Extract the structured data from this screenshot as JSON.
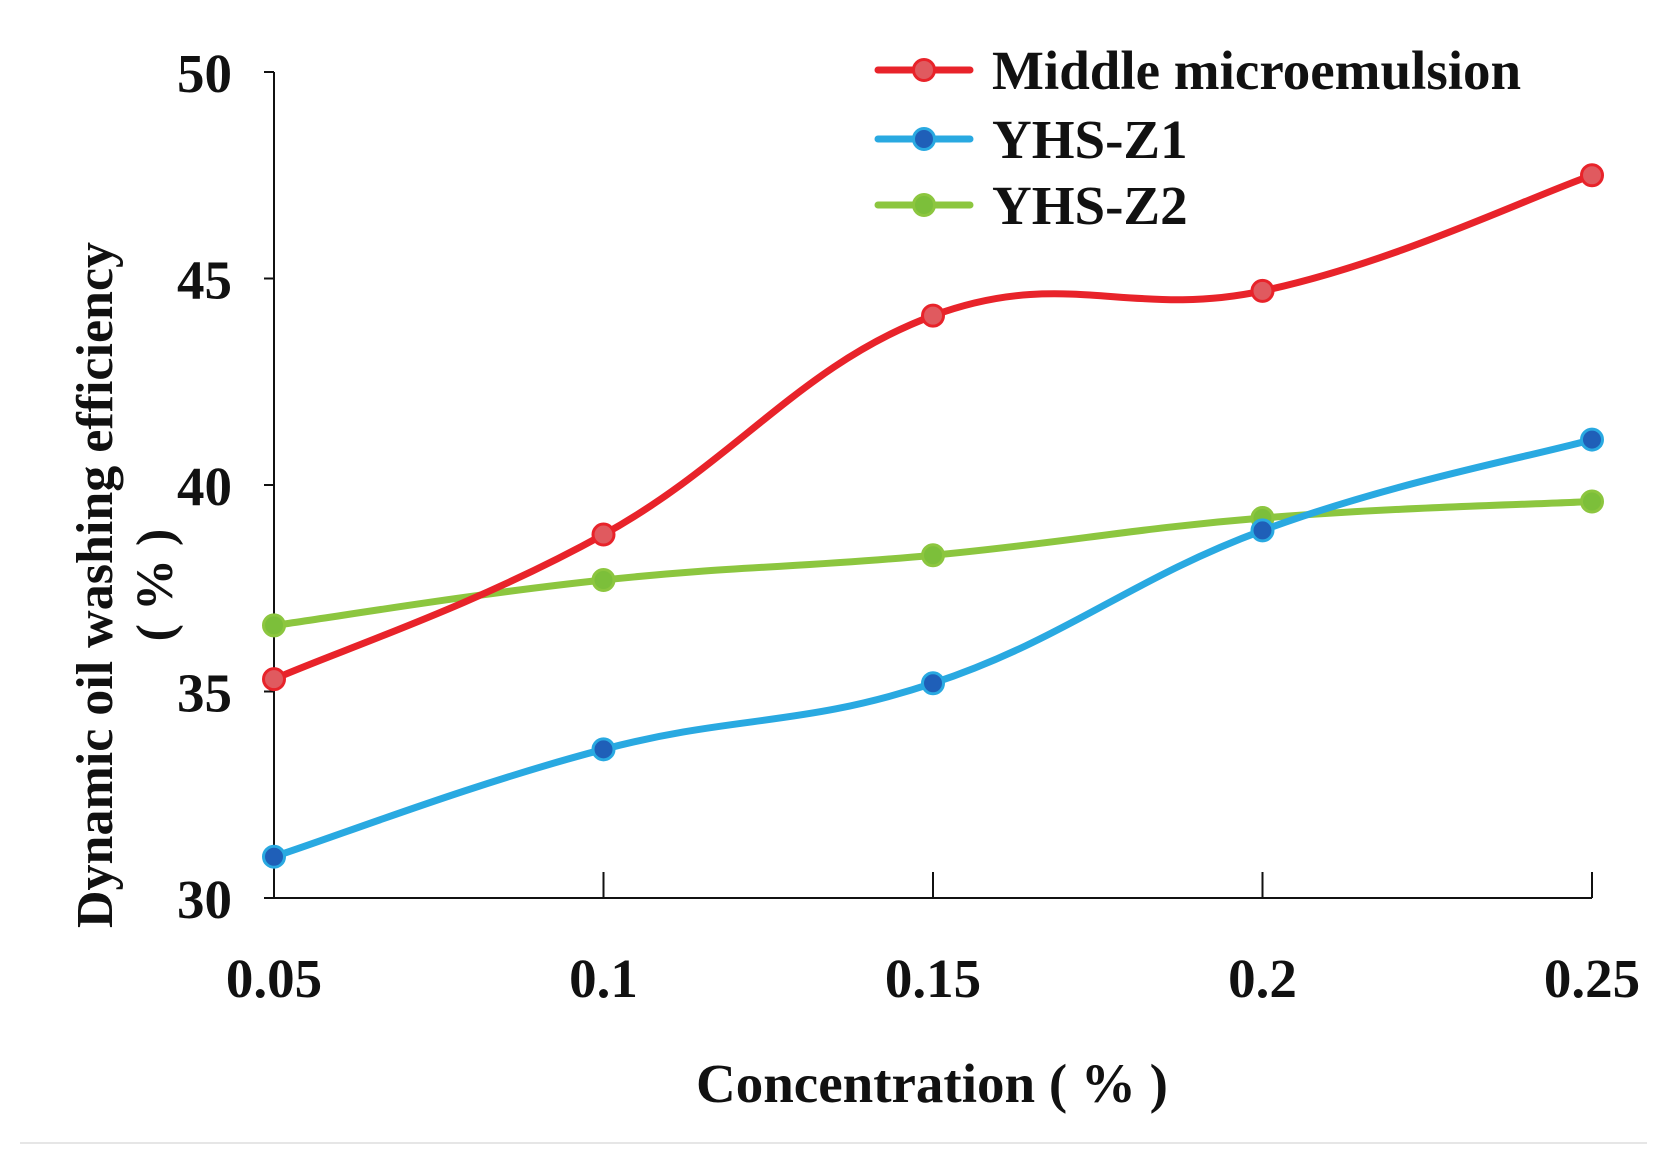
{
  "chart_data": {
    "type": "line",
    "title": "",
    "xlabel": "Concentration ( % )",
    "ylabel": "Dynamic oil washing efficiency",
    "ylabel_unit": "( % )",
    "categories": [
      "0.05",
      "0.1",
      "0.15",
      "0.2",
      "0.25"
    ],
    "ylim": [
      30,
      50
    ],
    "yticks": [
      "30",
      "35",
      "40",
      "45",
      "50"
    ],
    "grid": false,
    "legend_position": "top-right",
    "series": [
      {
        "name": "Middle microemulsion",
        "color": "#e8232a",
        "marker_color": "#e05a5f",
        "values": [
          35.3,
          38.8,
          44.1,
          44.7,
          47.5
        ]
      },
      {
        "name": "YHS-Z1",
        "color": "#29a9e1",
        "marker_color": "#1f5fb8",
        "values": [
          31.0,
          33.6,
          35.2,
          38.9,
          41.1
        ]
      },
      {
        "name": "YHS-Z2",
        "color": "#8cc63f",
        "marker_color": "#7cbf3a",
        "values": [
          36.6,
          37.7,
          38.3,
          39.2,
          39.6
        ]
      }
    ]
  }
}
